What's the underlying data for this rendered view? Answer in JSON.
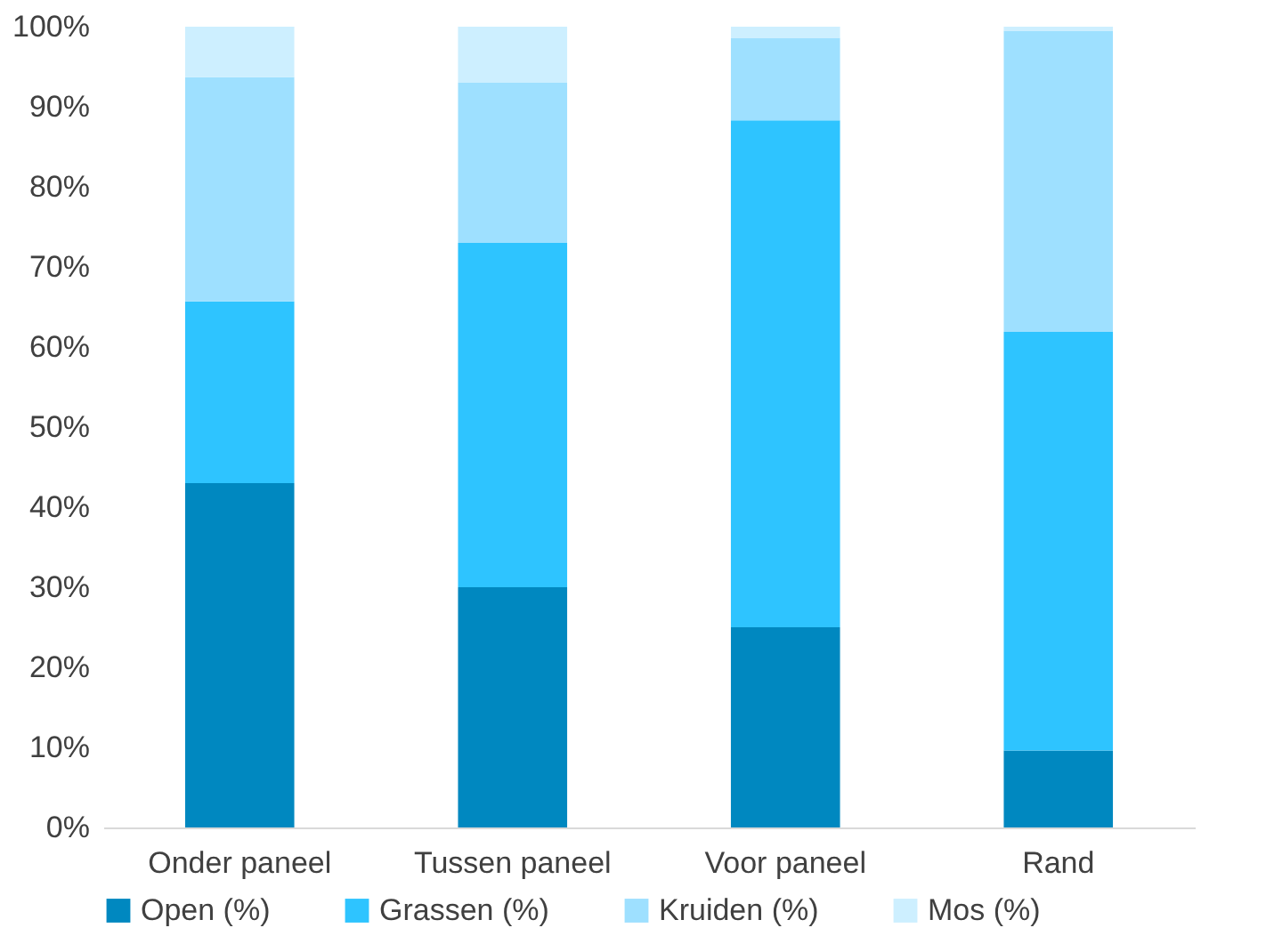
{
  "chart_data": {
    "type": "bar",
    "stacked": true,
    "categories": [
      "Onder paneel",
      "Tussen paneel",
      "Voor paneel",
      "Rand"
    ],
    "series": [
      {
        "name": "Open (%)",
        "color": "#0088c0",
        "values": [
          43,
          30,
          25,
          9.6
        ]
      },
      {
        "name": "Grassen (%)",
        "color": "#2ec4ff",
        "values": [
          22.7,
          43,
          63.3,
          52.3
        ]
      },
      {
        "name": "Kruiden (%)",
        "color": "#9ee0ff",
        "values": [
          28,
          20,
          10.3,
          37.6
        ]
      },
      {
        "name": "Mos (%)",
        "color": "#cdefff",
        "values": [
          6.3,
          7,
          1.4,
          0.5
        ]
      }
    ],
    "ylim": [
      0,
      100
    ],
    "yticks": [
      {
        "value": 0,
        "label": "0%"
      },
      {
        "value": 10,
        "label": "10%"
      },
      {
        "value": 20,
        "label": "20%"
      },
      {
        "value": 30,
        "label": "30%"
      },
      {
        "value": 40,
        "label": "40%"
      },
      {
        "value": 50,
        "label": "50%"
      },
      {
        "value": 60,
        "label": "60%"
      },
      {
        "value": 70,
        "label": "70%"
      },
      {
        "value": 80,
        "label": "80%"
      },
      {
        "value": 90,
        "label": "90%"
      },
      {
        "value": 100,
        "label": "100%"
      }
    ],
    "grid": false,
    "legend": "bottom"
  }
}
